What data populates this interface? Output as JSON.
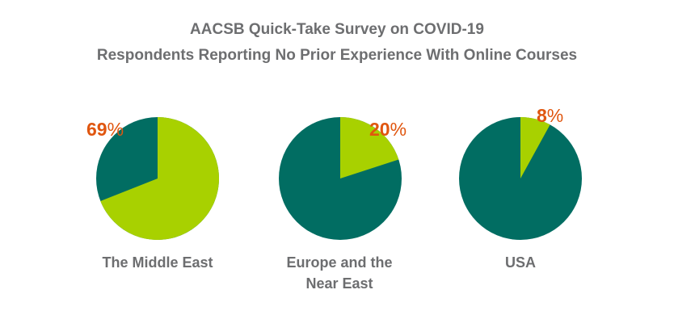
{
  "header": {
    "title": "AACSB Quick-Take Survey on COVID-19",
    "subtitle": "Respondents Reporting No Prior Experience With Online Courses"
  },
  "colors": {
    "highlight": "#a8d100",
    "remainder": "#016d62",
    "label_text": "#6d6e70",
    "percent_text": "#e0560f"
  },
  "chart_data": {
    "type": "pie",
    "title": "AACSB Quick-Take Survey on COVID-19",
    "subtitle": "Respondents Reporting No Prior Experience With Online Courses",
    "charts": [
      {
        "category": "The Middle East",
        "value": 69,
        "label": "69",
        "remainder": 31
      },
      {
        "category": "Europe and the Near East",
        "value": 20,
        "label": "20",
        "remainder": 80
      },
      {
        "category": "USA",
        "value": 8,
        "label": "8",
        "remainder": 92
      }
    ],
    "unit": "%"
  }
}
